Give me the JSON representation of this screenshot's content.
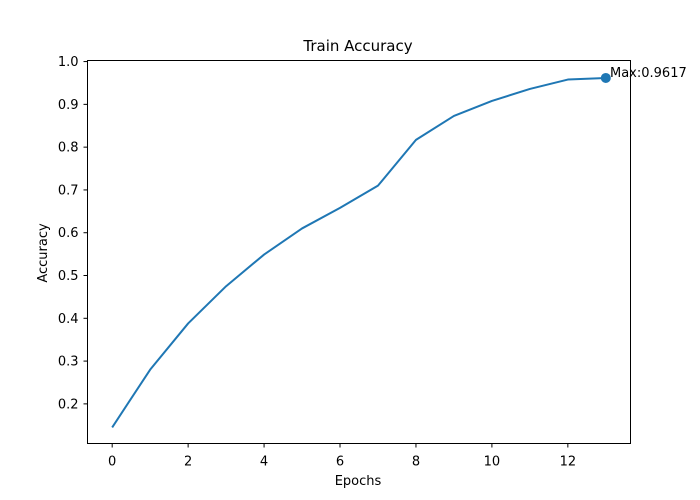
{
  "chart_data": {
    "type": "line",
    "title": "Train Accuracy",
    "xlabel": "Epochs",
    "ylabel": "Accuracy",
    "xlim": [
      -0.65,
      13.65
    ],
    "ylim": [
      0.1074,
      1.0025
    ],
    "xticks": [
      0,
      2,
      4,
      6,
      8,
      10,
      12
    ],
    "yticks": [
      0.2,
      0.3,
      0.4,
      0.5,
      0.6,
      0.7,
      0.8,
      0.9,
      1.0
    ],
    "ytick_labels": [
      "0.2",
      "0.3",
      "0.4",
      "0.5",
      "0.6",
      "0.7",
      "0.8",
      "0.9",
      "1.0"
    ],
    "grid": false,
    "series": [
      {
        "color": "#1f77b4",
        "x": [
          0,
          1,
          2,
          3,
          4,
          5,
          6,
          7,
          8,
          9,
          10,
          11,
          12,
          13
        ],
        "y": [
          0.145,
          0.28,
          0.388,
          0.475,
          0.549,
          0.61,
          0.658,
          0.71,
          0.817,
          0.873,
          0.908,
          0.936,
          0.958,
          0.9617
        ]
      }
    ],
    "max_marker": {
      "x": 13,
      "y": 0.9617,
      "color": "#1f77b4"
    },
    "annotation": {
      "text": "Max:0.9617"
    }
  }
}
